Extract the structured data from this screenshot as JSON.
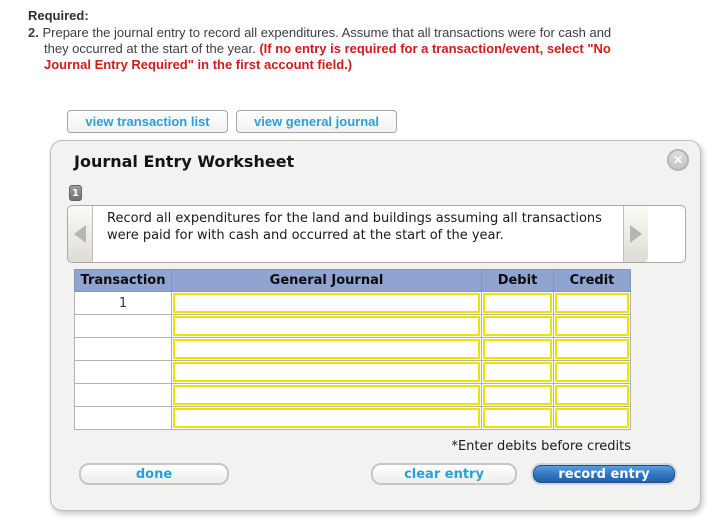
{
  "instructions": {
    "required_label": "Required:",
    "item_number": "2.",
    "text_black": "Prepare the journal entry to record all expenditures. Assume that all transactions were for cash and they occurred at the start of the year. ",
    "text_red": "(If no entry is required for a transaction/event, select \"No Journal Entry Required\" in the first account field.)"
  },
  "toolbar": {
    "view_transaction_list_label": "view transaction list",
    "view_general_journal_label": "view general journal"
  },
  "worksheet": {
    "title": "Journal Entry Worksheet",
    "close_glyph": "✕",
    "tab_label": "1",
    "prompt": "Record all expenditures for the land and buildings assuming all transactions were paid for with cash and occurred at the start of the year.",
    "table": {
      "headers": [
        "Transaction",
        "General Journal",
        "Debit",
        "Credit"
      ],
      "rows": [
        {
          "transaction": "1",
          "general_journal": "",
          "debit": "",
          "credit": ""
        },
        {
          "transaction": "",
          "general_journal": "",
          "debit": "",
          "credit": ""
        },
        {
          "transaction": "",
          "general_journal": "",
          "debit": "",
          "credit": ""
        },
        {
          "transaction": "",
          "general_journal": "",
          "debit": "",
          "credit": ""
        },
        {
          "transaction": "",
          "general_journal": "",
          "debit": "",
          "credit": ""
        },
        {
          "transaction": "",
          "general_journal": "",
          "debit": "",
          "credit": ""
        }
      ]
    },
    "note": "*Enter debits before credits",
    "buttons": {
      "done_label": "done",
      "clear_label": "clear entry",
      "record_label": "record entry"
    }
  },
  "colors": {
    "accent_blue": "#2b9fd6",
    "red_text": "#d11b1b",
    "table_header_bg": "#8fa4d1",
    "input_border_yellow": "#ece400",
    "panel_bg": "#f2f2f0",
    "record_button_blue": "#2e74bd"
  }
}
